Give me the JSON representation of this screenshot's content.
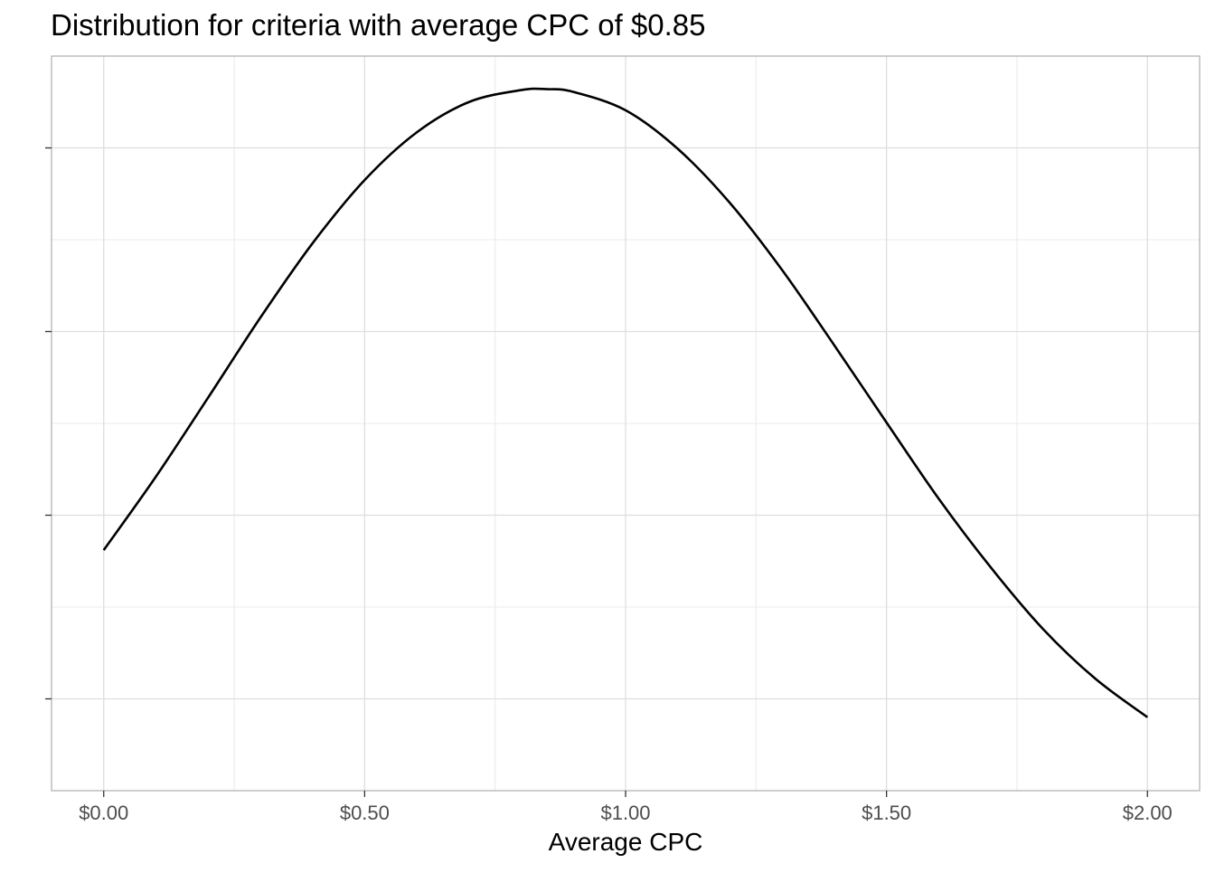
{
  "chart_data": {
    "type": "line",
    "title": "Distribution for criteria with average CPC of $0.85",
    "xlabel": "Average CPC",
    "ylabel": "",
    "x_ticks": [
      0.0,
      0.5,
      1.0,
      1.5,
      2.0
    ],
    "x_tick_labels": [
      "$0.00",
      "$0.50",
      "$1.00",
      "$1.50",
      "$2.00"
    ],
    "xlim": [
      -0.1,
      2.1
    ],
    "y_tick_labels_shown": false,
    "grid": true,
    "legend": "none",
    "line_color": "#000000",
    "series": [
      {
        "x": [
          0.0,
          0.1,
          0.2,
          0.3,
          0.4,
          0.5,
          0.6,
          0.7,
          0.8,
          0.85,
          0.9,
          1.0,
          1.1,
          1.2,
          1.3,
          1.4,
          1.5,
          1.6,
          1.7,
          1.8,
          1.9,
          2.0
        ],
        "y": [
          0.262,
          0.342,
          0.428,
          0.515,
          0.596,
          0.665,
          0.717,
          0.75,
          0.763,
          0.764,
          0.761,
          0.741,
          0.699,
          0.64,
          0.567,
          0.485,
          0.401,
          0.318,
          0.243,
          0.176,
          0.122,
          0.08
        ]
      }
    ],
    "ylim": [
      0.0,
      0.8
    ],
    "y_gridlines": [
      0.1,
      0.2,
      0.3,
      0.4,
      0.5,
      0.6,
      0.7
    ]
  }
}
